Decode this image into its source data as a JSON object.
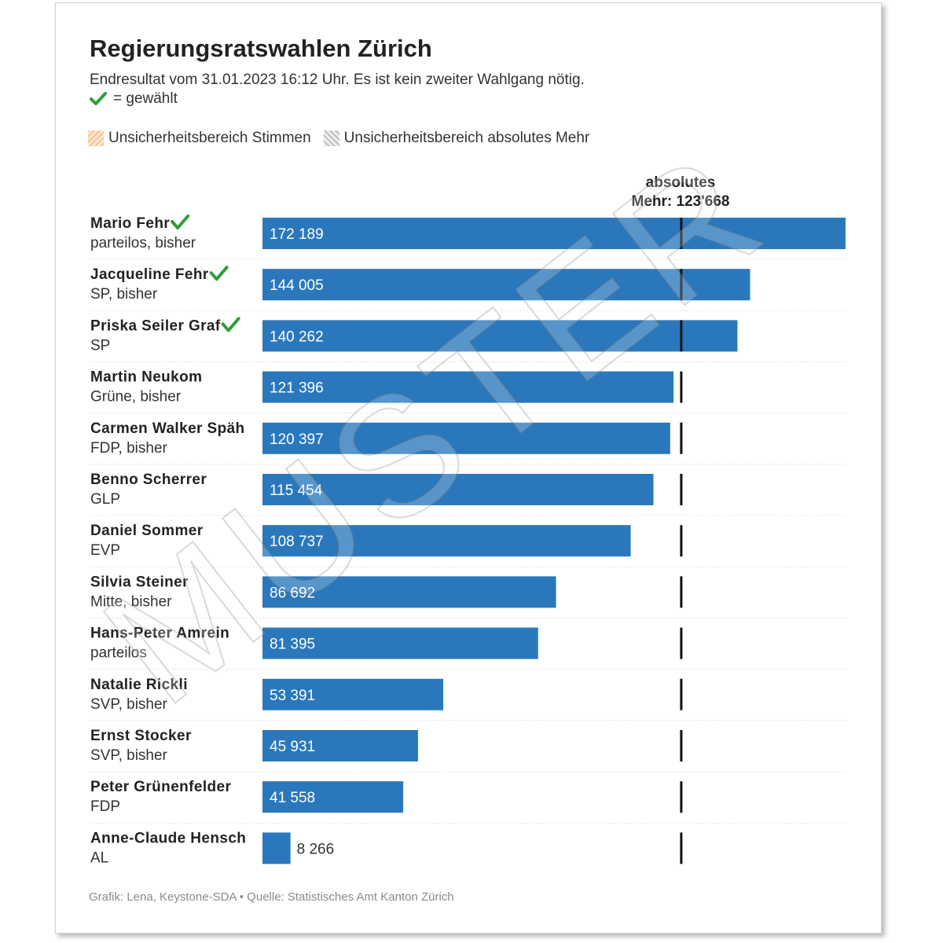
{
  "header": {
    "title": "Regierungsratswahlen Zürich",
    "subtitle": "Endresultat vom 31.01.2023 16:12 Uhr. Es ist kein zweiter Wahlgang nötig.",
    "elected_note": "= gewählt"
  },
  "legend": {
    "items": [
      {
        "label": "Unsicherheitsbereich Stimmen",
        "color": "#f3c89a"
      },
      {
        "label": "Unsicherheitsbereich absolutes Mehr",
        "color": "#b5b5b5"
      }
    ]
  },
  "footer": {
    "source": "Grafik: Lena, Keystone-SDA • Quelle: Statistisches Amt Kanton Zürich"
  },
  "watermark": {
    "text": "MUSTER"
  },
  "colors": {
    "bar": "#2a78bb",
    "threshold": "#111111",
    "check": "#2e9e3a",
    "grid": "#e2e2e2"
  },
  "chart_data": {
    "type": "bar",
    "orientation": "horizontal",
    "title": "Regierungsratswahlen Zürich",
    "threshold": {
      "label_line1": "absolutes",
      "label_line2": "Mehr: 123'668",
      "value": 123668
    },
    "xlim": [
      0,
      172189
    ],
    "candidates": [
      {
        "name": "Mario Fehr",
        "party": "parteilos, bisher",
        "value": 172189,
        "label": "172 189",
        "elected": true
      },
      {
        "name": "Jacqueline Fehr",
        "party": "SP, bisher",
        "value": 144005,
        "label": "144 005",
        "elected": true
      },
      {
        "name": "Priska Seiler Graf",
        "party": "SP",
        "value": 140262,
        "label": "140 262",
        "elected": true
      },
      {
        "name": "Martin Neukom",
        "party": "Grüne, bisher",
        "value": 121396,
        "label": "121 396",
        "elected": false
      },
      {
        "name": "Carmen Walker Späh",
        "party": "FDP, bisher",
        "value": 120397,
        "label": "120 397",
        "elected": false
      },
      {
        "name": "Benno Scherrer",
        "party": "GLP",
        "value": 115454,
        "label": "115 454",
        "elected": false
      },
      {
        "name": "Daniel Sommer",
        "party": "EVP",
        "value": 108737,
        "label": "108 737",
        "elected": false
      },
      {
        "name": "Silvia Steiner",
        "party": "Mitte, bisher",
        "value": 86692,
        "label": "86 692",
        "elected": false
      },
      {
        "name": "Hans-Peter Amrein",
        "party": "parteilos",
        "value": 81395,
        "label": "81 395",
        "elected": false
      },
      {
        "name": "Natalie Rickli",
        "party": "SVP, bisher",
        "value": 53391,
        "label": "53 391",
        "elected": false
      },
      {
        "name": "Ernst Stocker",
        "party": "SVP, bisher",
        "value": 45931,
        "label": "45 931",
        "elected": false
      },
      {
        "name": "Peter Grünenfelder",
        "party": "FDP",
        "value": 41558,
        "label": "41 558",
        "elected": false
      },
      {
        "name": "Anne-Claude Hensch",
        "party": "AL",
        "value": 8266,
        "label": "8 266",
        "elected": false
      }
    ]
  }
}
